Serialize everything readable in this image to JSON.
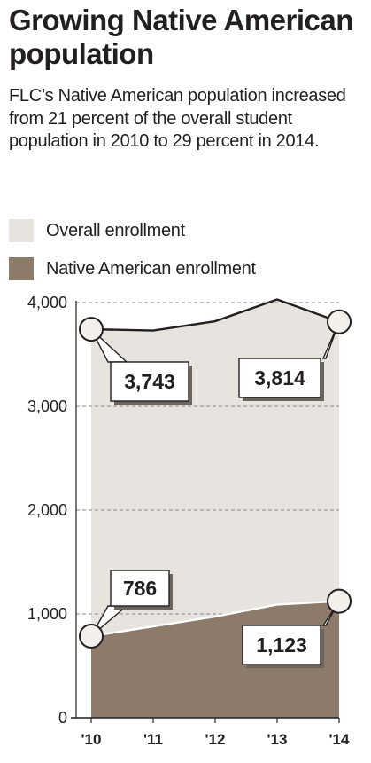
{
  "title": "Growing Native American population",
  "subtitle": "FLC’s Native American population increased from 21 percent of the overall student population in 2010 to 29 percent in 2014.",
  "legend": [
    {
      "label": "Overall enrollment",
      "color": "#e7e3df"
    },
    {
      "label": "Native American enrollment",
      "color": "#8c7b6b"
    }
  ],
  "chart_data": {
    "type": "area",
    "title": "Growing Native American population",
    "categories": [
      "'10",
      "'11",
      "'12",
      "'13",
      "'14"
    ],
    "series": [
      {
        "name": "Overall enrollment",
        "values": [
          3743,
          3730,
          3820,
          4030,
          3814
        ],
        "color": "#e7e3df",
        "line_color": "#231f20"
      },
      {
        "name": "Native American enrollment",
        "values": [
          786,
          880,
          975,
          1090,
          1123
        ],
        "color": "#8c7b6b",
        "line_color": "#ffffff"
      }
    ],
    "yticks": [
      0,
      1000,
      2000,
      3000,
      4000
    ],
    "ytick_labels": [
      "0",
      "1,000",
      "2,000",
      "3,000",
      "4,000"
    ],
    "ylim": [
      0,
      4000
    ],
    "grid": true,
    "annotations": [
      {
        "series": 0,
        "index": 0,
        "text": "3,743"
      },
      {
        "series": 0,
        "index": 4,
        "text": "3,814"
      },
      {
        "series": 1,
        "index": 0,
        "text": "786"
      },
      {
        "series": 1,
        "index": 4,
        "text": "1,123"
      }
    ]
  }
}
